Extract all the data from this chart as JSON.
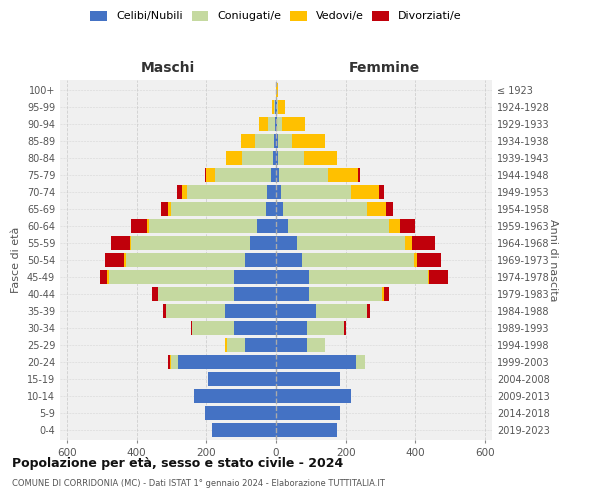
{
  "age_groups": [
    "0-4",
    "5-9",
    "10-14",
    "15-19",
    "20-24",
    "25-29",
    "30-34",
    "35-39",
    "40-44",
    "45-49",
    "50-54",
    "55-59",
    "60-64",
    "65-69",
    "70-74",
    "75-79",
    "80-84",
    "85-89",
    "90-94",
    "95-99",
    "100+"
  ],
  "birth_years": [
    "2019-2023",
    "2014-2018",
    "2009-2013",
    "2004-2008",
    "1999-2003",
    "1994-1998",
    "1989-1993",
    "1984-1988",
    "1979-1983",
    "1974-1978",
    "1969-1973",
    "1964-1968",
    "1959-1963",
    "1954-1958",
    "1949-1953",
    "1944-1948",
    "1939-1943",
    "1934-1938",
    "1929-1933",
    "1924-1928",
    "≤ 1923"
  ],
  "colors": {
    "celibi": "#4472c4",
    "coniugati": "#c5d9a0",
    "vedovi": "#ffc000",
    "divorziati": "#c0000b"
  },
  "maschi": {
    "celibi": [
      185,
      205,
      235,
      195,
      280,
      90,
      120,
      145,
      120,
      120,
      90,
      75,
      55,
      30,
      25,
      15,
      8,
      5,
      3,
      2,
      0
    ],
    "coniugati": [
      0,
      0,
      0,
      0,
      20,
      50,
      120,
      170,
      220,
      360,
      340,
      340,
      310,
      270,
      230,
      160,
      90,
      55,
      20,
      5,
      0
    ],
    "vedovi": [
      0,
      0,
      0,
      0,
      5,
      5,
      0,
      0,
      0,
      5,
      5,
      5,
      5,
      10,
      15,
      25,
      45,
      40,
      25,
      5,
      0
    ],
    "divorziati": [
      0,
      0,
      0,
      0,
      5,
      0,
      5,
      10,
      15,
      20,
      55,
      55,
      45,
      20,
      15,
      5,
      0,
      0,
      0,
      0,
      0
    ]
  },
  "femmine": {
    "celibi": [
      175,
      185,
      215,
      185,
      230,
      90,
      90,
      115,
      95,
      95,
      75,
      60,
      35,
      20,
      15,
      10,
      5,
      5,
      3,
      2,
      0
    ],
    "coniugati": [
      0,
      0,
      0,
      0,
      25,
      50,
      105,
      145,
      210,
      340,
      320,
      310,
      290,
      240,
      200,
      140,
      75,
      40,
      15,
      5,
      0
    ],
    "vedovi": [
      0,
      0,
      0,
      0,
      0,
      0,
      0,
      0,
      5,
      5,
      10,
      20,
      30,
      55,
      80,
      85,
      95,
      95,
      65,
      20,
      5
    ],
    "divorziati": [
      0,
      0,
      0,
      0,
      0,
      0,
      5,
      10,
      15,
      55,
      70,
      65,
      45,
      20,
      15,
      5,
      0,
      0,
      0,
      0,
      0
    ]
  },
  "title": "Popolazione per età, sesso e stato civile - 2024",
  "subtitle": "COMUNE DI CORRIDONIA (MC) - Dati ISTAT 1° gennaio 2024 - Elaborazione TUTTITALIA.IT",
  "xlabel_left": "Maschi",
  "xlabel_right": "Femmine",
  "ylabel_left": "Fasce di età",
  "ylabel_right": "Anni di nascita",
  "xlim": 620,
  "legend_labels": [
    "Celibi/Nubili",
    "Coniugati/e",
    "Vedovi/e",
    "Divorziati/e"
  ],
  "background_color": "#ffffff",
  "plot_bg": "#f0f0f0",
  "grid_color": "#cccccc",
  "bar_height": 0.85
}
